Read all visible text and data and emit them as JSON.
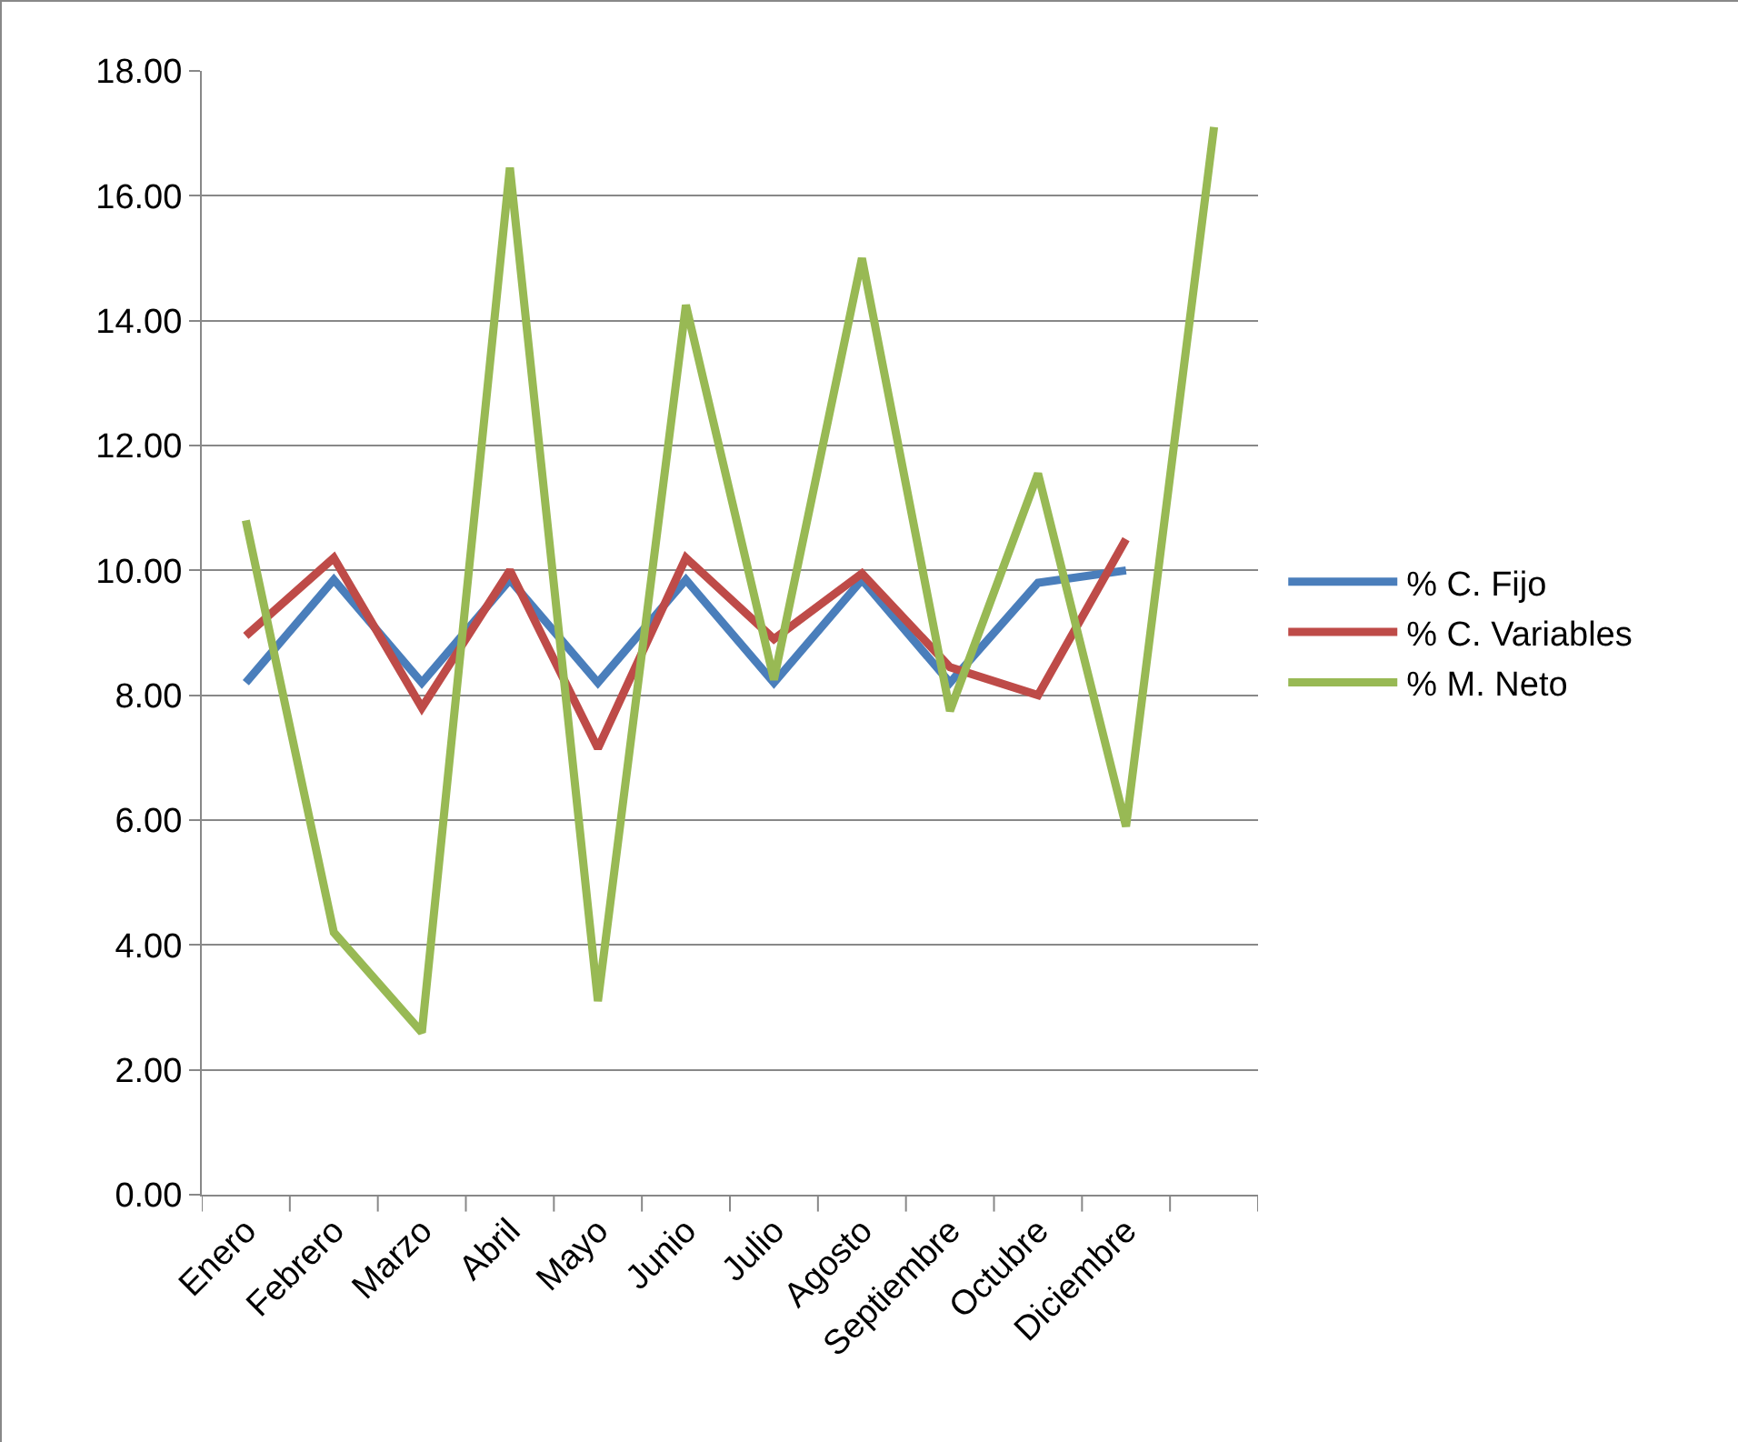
{
  "chart_data": {
    "type": "line",
    "categories": [
      "Enero",
      "Febrero",
      "Marzo",
      "Abril",
      "Mayo",
      "Junio",
      "Julio",
      "Agosto",
      "Septiembre",
      "Octubre",
      "Diciembre",
      null
    ],
    "series": [
      {
        "name": "% C. Fijo",
        "color": "#4a7ebb",
        "values": [
          8.2,
          9.85,
          8.2,
          9.85,
          8.2,
          9.85,
          8.2,
          9.85,
          8.2,
          9.8,
          10.0,
          null
        ]
      },
      {
        "name": "% C. Variables",
        "color": "#be4b48",
        "values": [
          8.95,
          10.2,
          7.8,
          10.0,
          7.15,
          10.2,
          8.9,
          9.95,
          8.45,
          8.0,
          10.5,
          null
        ]
      },
      {
        "name": "% M. Neto",
        "color": "#98b954",
        "values": [
          10.8,
          4.2,
          2.6,
          16.45,
          3.1,
          14.25,
          8.25,
          15.0,
          7.75,
          11.55,
          5.9,
          17.1
        ]
      }
    ],
    "ylim": [
      0,
      18
    ],
    "yticks": [
      {
        "value": 0,
        "label": "0.00"
      },
      {
        "value": 2,
        "label": "2.00"
      },
      {
        "value": 4,
        "label": "4.00"
      },
      {
        "value": 6,
        "label": "6.00"
      },
      {
        "value": 8,
        "label": "8.00"
      },
      {
        "value": 10,
        "label": "10.00"
      },
      {
        "value": 12,
        "label": "12.00"
      },
      {
        "value": 14,
        "label": "14.00"
      },
      {
        "value": 16,
        "label": "16.00"
      },
      {
        "value": 18,
        "label": "18.00"
      }
    ],
    "grid": "y",
    "legend": "right",
    "marker": "none",
    "line_style": "solid"
  }
}
